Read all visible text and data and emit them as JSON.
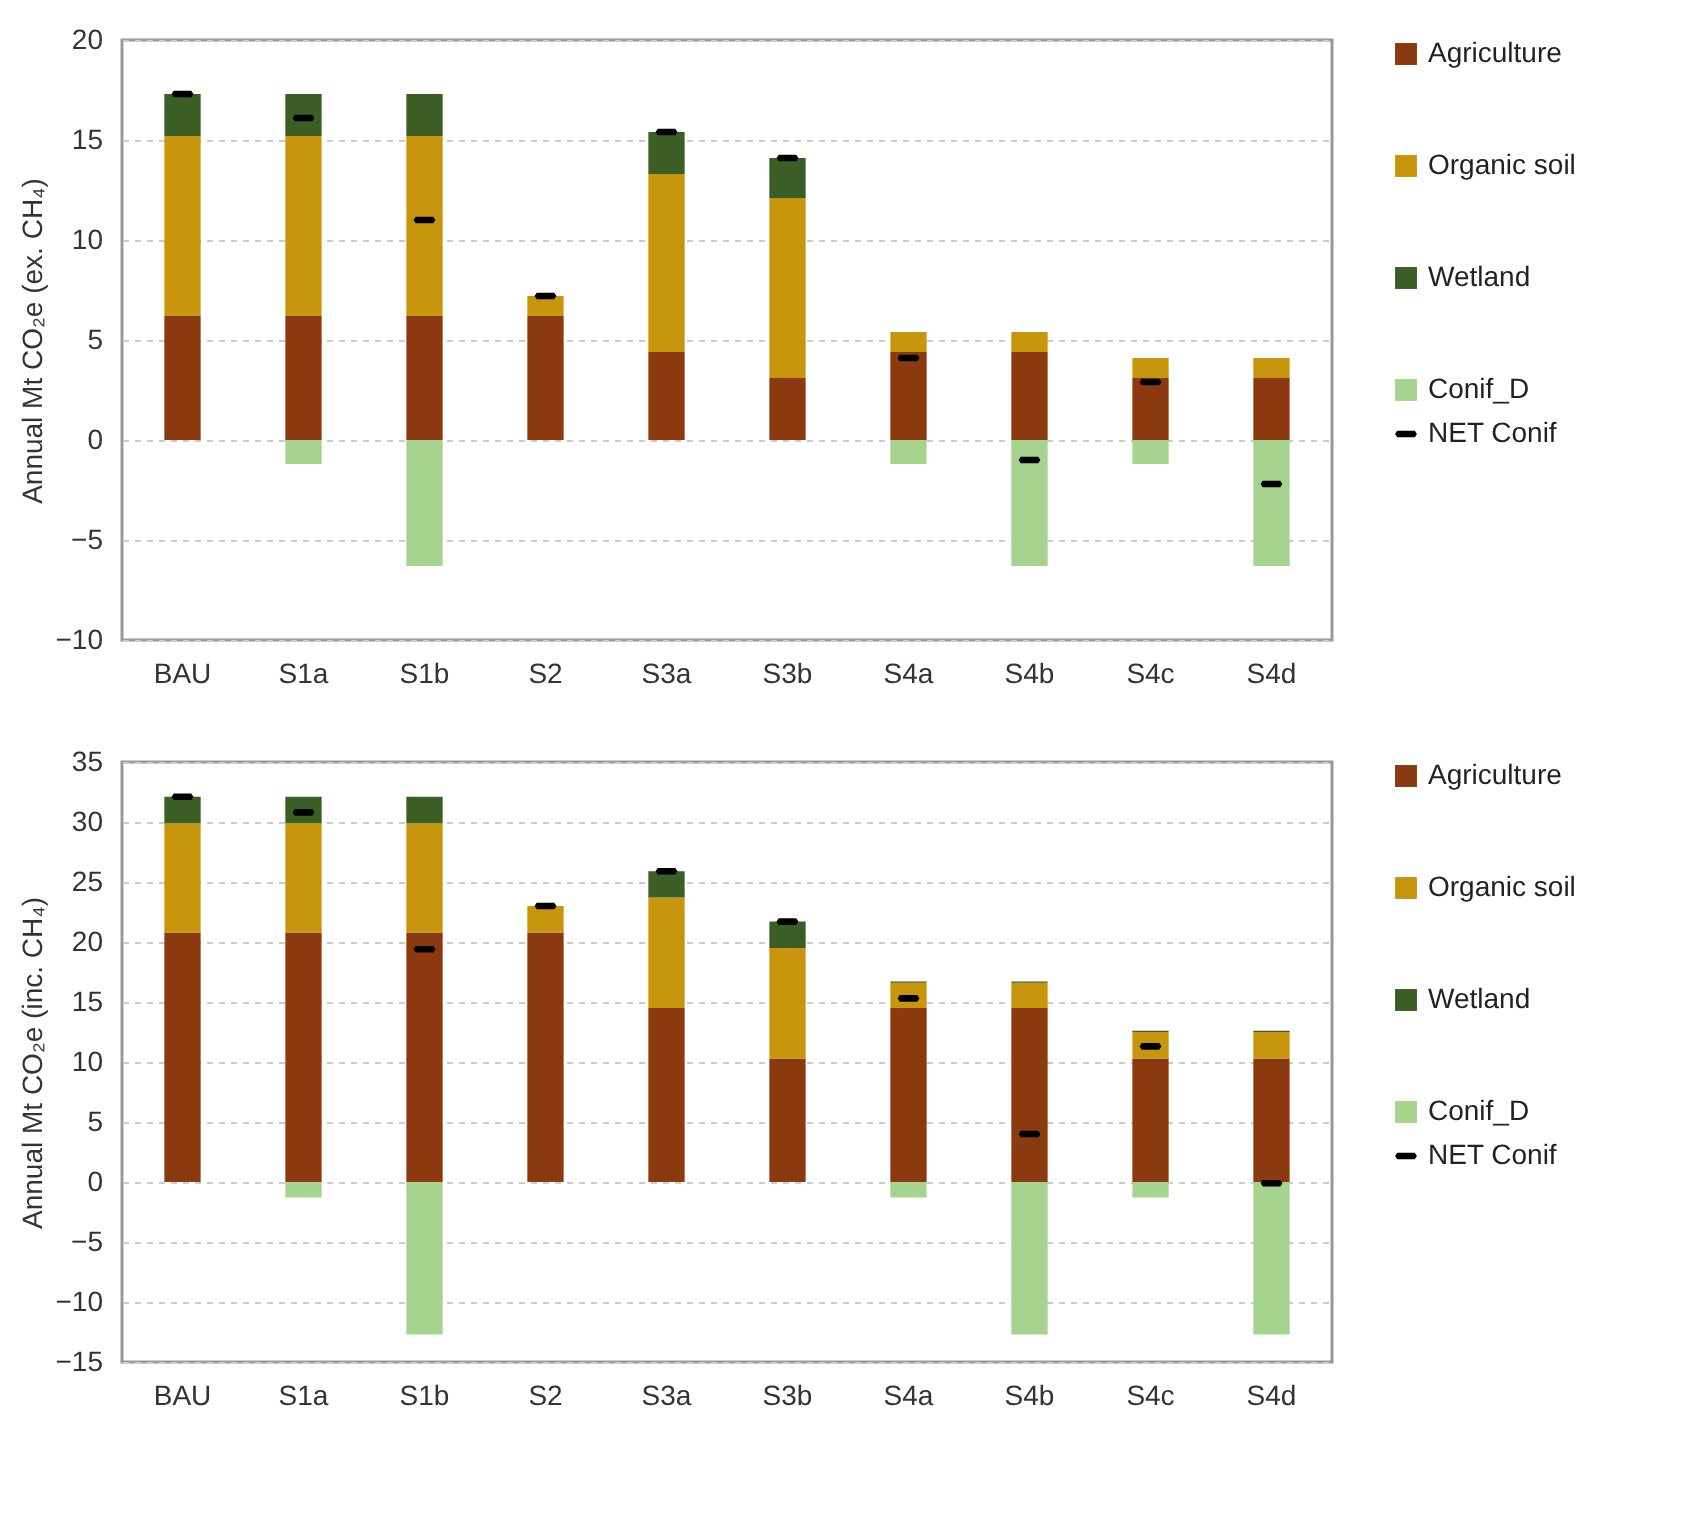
{
  "chart_data": [
    {
      "type": "bar",
      "stacked": true,
      "ylabel": "Annual Mt CO₂e (ex. CH₄)",
      "categories": [
        "BAU",
        "S1a",
        "S1b",
        "S2",
        "S3a",
        "S3b",
        "S4a",
        "S4b",
        "S4c",
        "S4d"
      ],
      "ylim": [
        -10,
        20
      ],
      "yticks": [
        -10,
        -5,
        0,
        5,
        10,
        15,
        20
      ],
      "grid": "y",
      "legend": "right",
      "series": [
        {
          "name": "Agriculture",
          "color": "#8b3a0f",
          "values": [
            6.2,
            6.2,
            6.2,
            6.2,
            4.4,
            3.1,
            4.4,
            4.4,
            3.1,
            3.1
          ]
        },
        {
          "name": "Organic soil",
          "color": "#c8960c",
          "values": [
            9.0,
            9.0,
            9.0,
            1.0,
            8.9,
            9.0,
            1.0,
            1.0,
            1.0,
            1.0
          ]
        },
        {
          "name": "Wetland",
          "color": "#3a5e24",
          "values": [
            2.1,
            2.1,
            2.1,
            null,
            2.1,
            2.0,
            null,
            null,
            null,
            null
          ]
        },
        {
          "name": "Conif_D",
          "color": "#a6d38d",
          "values": [
            null,
            -1.2,
            -6.3,
            null,
            null,
            null,
            -1.2,
            -6.3,
            -1.2,
            -6.3
          ]
        },
        {
          "name": "NET Conif",
          "type": "scatter",
          "color": "#000000",
          "values": [
            17.3,
            16.1,
            11.0,
            7.2,
            15.4,
            14.1,
            4.1,
            -1.0,
            2.9,
            -2.2
          ]
        }
      ]
    },
    {
      "type": "bar",
      "stacked": true,
      "ylabel": "Annual Mt CO₂e (inc. CH₄)",
      "categories": [
        "BAU",
        "S1a",
        "S1b",
        "S2",
        "S3a",
        "S3b",
        "S4a",
        "S4b",
        "S4c",
        "S4d"
      ],
      "ylim": [
        -15,
        35
      ],
      "yticks": [
        -15,
        -10,
        -5,
        0,
        5,
        10,
        15,
        20,
        25,
        30,
        35
      ],
      "grid": "y",
      "legend": "right",
      "series": [
        {
          "name": "Agriculture",
          "color": "#8b3a0f",
          "values": [
            20.8,
            20.8,
            20.8,
            20.8,
            14.5,
            10.3,
            14.5,
            14.5,
            10.3,
            10.3
          ]
        },
        {
          "name": "Organic soil",
          "color": "#c8960c",
          "values": [
            9.1,
            9.1,
            9.1,
            2.2,
            9.2,
            9.2,
            2.1,
            2.1,
            2.2,
            2.2
          ]
        },
        {
          "name": "Wetland",
          "color": "#3a5e24",
          "values": [
            2.2,
            2.2,
            2.2,
            null,
            2.2,
            2.2,
            0.1,
            0.1,
            0.1,
            0.1
          ]
        },
        {
          "name": "Conif_D",
          "color": "#a6d38d",
          "values": [
            null,
            -1.3,
            -12.7,
            null,
            null,
            null,
            -1.3,
            -12.7,
            -1.3,
            -12.7
          ]
        },
        {
          "name": "NET Conif",
          "type": "scatter",
          "color": "#000000",
          "values": [
            32.1,
            30.8,
            19.4,
            23.0,
            25.9,
            21.7,
            15.3,
            4.0,
            11.3,
            -0.1
          ]
        }
      ]
    }
  ]
}
